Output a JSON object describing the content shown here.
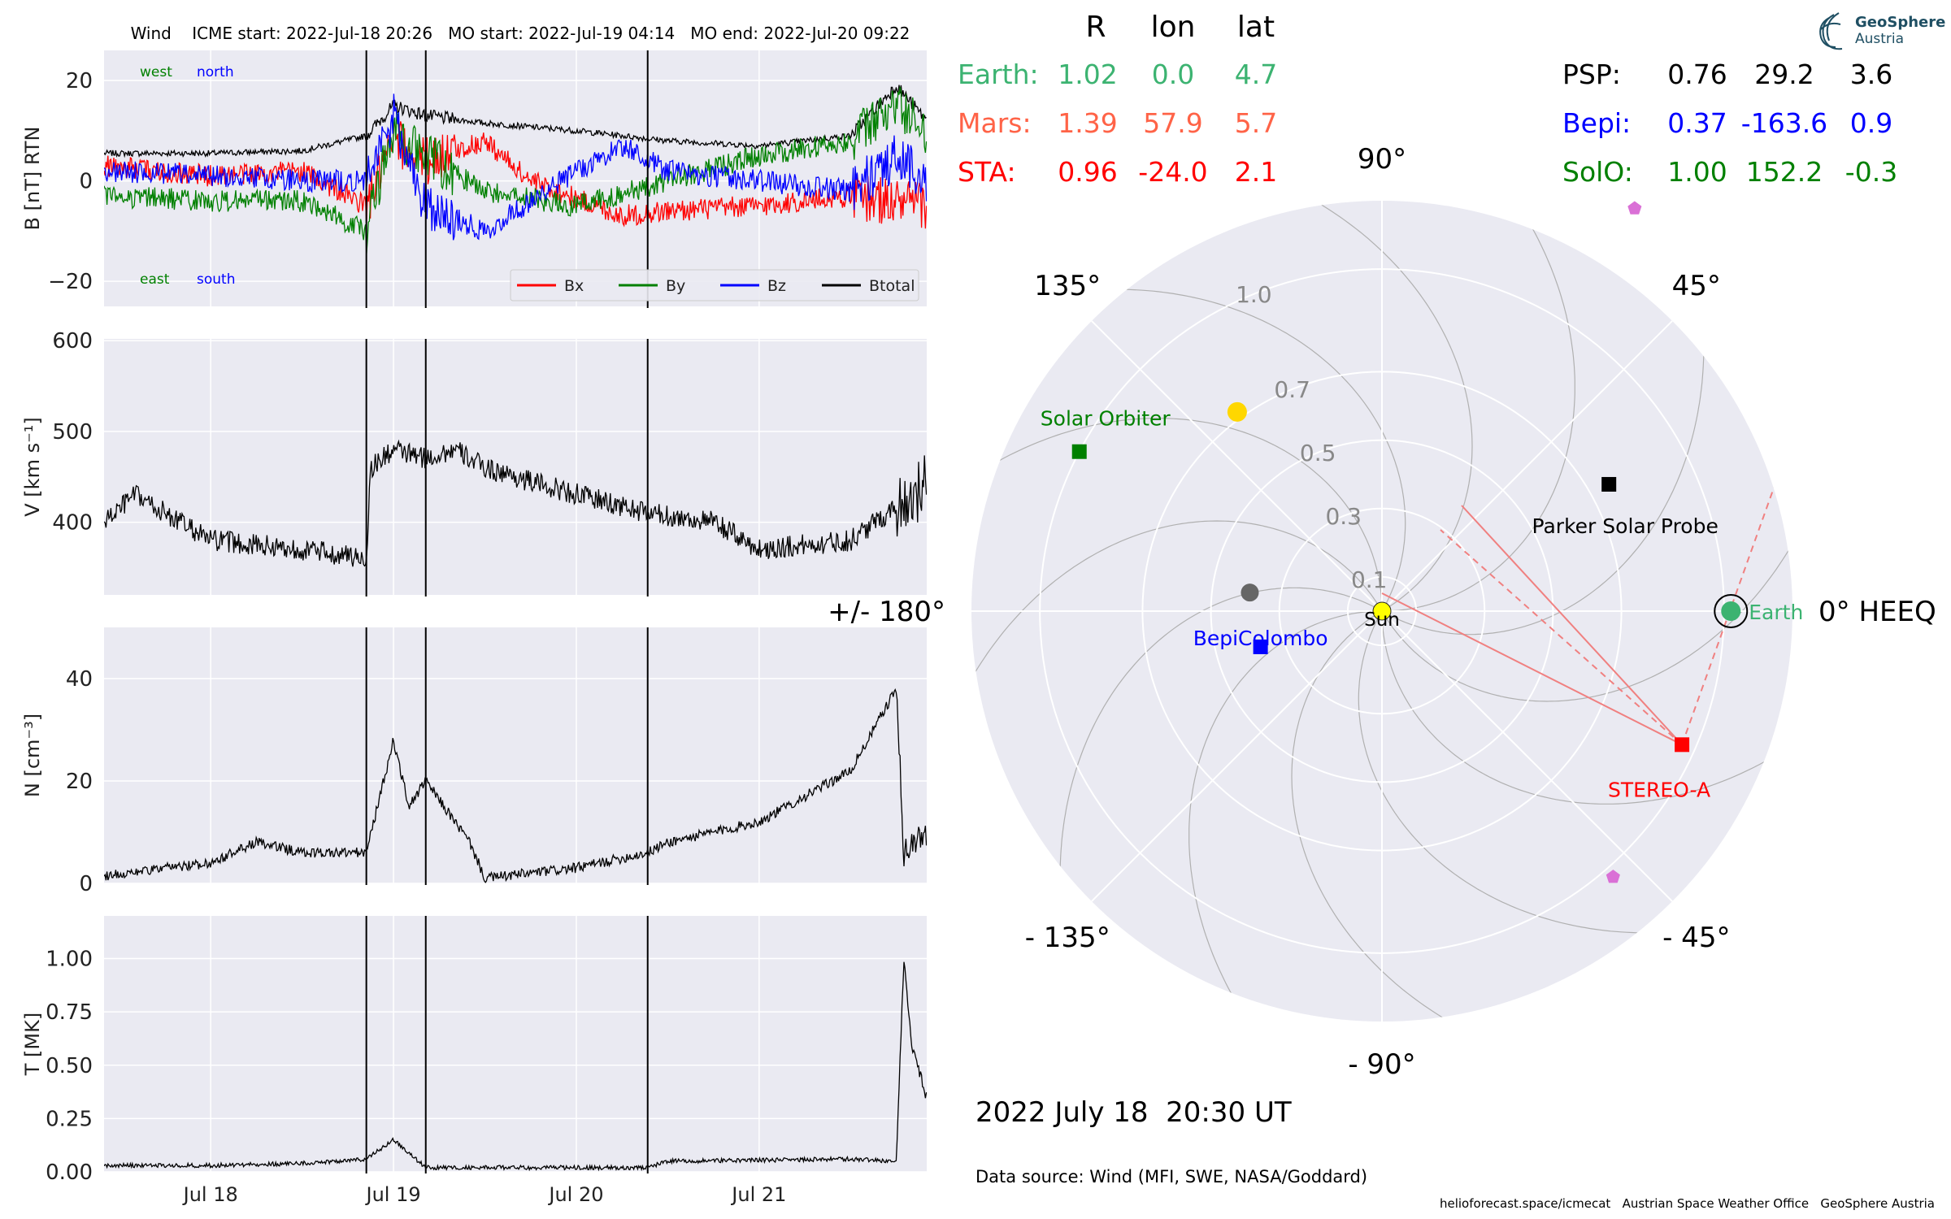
{
  "timeseries": {
    "title": "Wind    ICME start: 2022-Jul-18 20:26   MO start: 2022-Jul-19 04:14   MO end: 2022-Jul-20 09:22",
    "x_range": [
      "2022-07-17 10:00",
      "2022-07-21 22:00"
    ],
    "x_ticks": [
      {
        "label": "Jul 18",
        "date": "2022-07-18 00:00"
      },
      {
        "label": "Jul 19",
        "date": "2022-07-19 00:00"
      },
      {
        "label": "Jul 20",
        "date": "2022-07-20 00:00"
      },
      {
        "label": "Jul 21",
        "date": "2022-07-21 00:00"
      }
    ],
    "event_lines": [
      "2022-07-18 20:26",
      "2022-07-19 04:14",
      "2022-07-20 09:22"
    ],
    "colors": {
      "bg": "#eaeaf2",
      "grid": "#ffffff",
      "Bx": "#ff0000",
      "By": "#008000",
      "Bz": "#0000ff",
      "Btotal": "#000000"
    },
    "panels": [
      {
        "key": "B",
        "ylabel": "B [nT] RTN",
        "ylim": [
          -25,
          26
        ],
        "ticks": [
          {
            "v": 20,
            "label": "20"
          },
          {
            "v": 0,
            "label": "0"
          },
          {
            "v": -20,
            "label": "−20"
          }
        ],
        "annotations": [
          {
            "text": "west",
            "color": "#008000",
            "position": "top-left"
          },
          {
            "text": "north",
            "color": "#0000ff",
            "position": "top-left"
          },
          {
            "text": "east",
            "color": "#008000",
            "position": "bottom-left"
          },
          {
            "text": "south",
            "color": "#0000ff",
            "position": "bottom-left"
          }
        ],
        "legend": [
          "Bx",
          "By",
          "Bz",
          "Btotal"
        ]
      },
      {
        "key": "V",
        "ylabel": "V [km s⁻¹]",
        "ylim": [
          320,
          602
        ],
        "ticks": [
          {
            "v": 600,
            "label": "600"
          },
          {
            "v": 500,
            "label": "500"
          },
          {
            "v": 400,
            "label": "400"
          }
        ]
      },
      {
        "key": "N",
        "ylabel": "N [cm⁻³]",
        "ylim": [
          0,
          50
        ],
        "ticks": [
          {
            "v": 40,
            "label": "40"
          },
          {
            "v": 20,
            "label": "20"
          },
          {
            "v": 0,
            "label": "0"
          }
        ]
      },
      {
        "key": "T",
        "ylabel": "T [MK]",
        "ylim": [
          0,
          1.2
        ],
        "ticks": [
          {
            "v": 1.0,
            "label": "1.00"
          },
          {
            "v": 0.75,
            "label": "0.75"
          },
          {
            "v": 0.5,
            "label": "0.50"
          },
          {
            "v": 0.25,
            "label": "0.25"
          },
          {
            "v": 0.0,
            "label": "0.00"
          }
        ]
      }
    ]
  },
  "chart_data": [
    {
      "type": "line",
      "title": "Wind    ICME start: 2022-Jul-18 20:26   MO start: 2022-Jul-19 04:14   MO end: 2022-Jul-20 09:22",
      "ylabel": "B [nT] RTN",
      "series": [
        {
          "name": "Btotal",
          "points": [
            [
              "2022-07-17 10:00",
              5.5
            ],
            [
              "2022-07-18 00:00",
              5.5
            ],
            [
              "2022-07-18 12:00",
              6
            ],
            [
              "2022-07-18 20:26",
              9
            ],
            [
              "2022-07-19 00:00",
              15
            ],
            [
              "2022-07-19 04:14",
              13
            ],
            [
              "2022-07-19 12:00",
              11.5
            ],
            [
              "2022-07-20 00:00",
              10
            ],
            [
              "2022-07-20 12:00",
              8
            ],
            [
              "2022-07-21 00:00",
              7
            ],
            [
              "2022-07-21 12:00",
              9
            ],
            [
              "2022-07-21 18:00",
              19
            ],
            [
              "2022-07-21 22:00",
              12
            ]
          ]
        },
        {
          "name": "Bx",
          "points": [
            [
              "2022-07-17 10:00",
              3
            ],
            [
              "2022-07-18 00:00",
              1
            ],
            [
              "2022-07-18 12:00",
              2
            ],
            [
              "2022-07-18 20:26",
              -5
            ],
            [
              "2022-07-19 00:00",
              8
            ],
            [
              "2022-07-19 04:14",
              4
            ],
            [
              "2022-07-19 12:00",
              8
            ],
            [
              "2022-07-19 18:00",
              0
            ],
            [
              "2022-07-20 06:00",
              -7
            ],
            [
              "2022-07-20 12:00",
              -6
            ],
            [
              "2022-07-21 00:00",
              -5
            ],
            [
              "2022-07-21 12:00",
              -3
            ],
            [
              "2022-07-21 22:00",
              -5
            ]
          ]
        },
        {
          "name": "By",
          "points": [
            [
              "2022-07-17 10:00",
              -3
            ],
            [
              "2022-07-18 00:00",
              -4
            ],
            [
              "2022-07-18 12:00",
              -4
            ],
            [
              "2022-07-18 20:26",
              -10
            ],
            [
              "2022-07-19 00:00",
              10
            ],
            [
              "2022-07-19 04:14",
              5
            ],
            [
              "2022-07-19 12:00",
              -2
            ],
            [
              "2022-07-20 00:00",
              -5
            ],
            [
              "2022-07-20 12:00",
              0
            ],
            [
              "2022-07-21 00:00",
              5
            ],
            [
              "2022-07-21 12:00",
              8
            ],
            [
              "2022-07-21 18:00",
              15
            ],
            [
              "2022-07-21 22:00",
              10
            ]
          ]
        },
        {
          "name": "Bz",
          "points": [
            [
              "2022-07-17 10:00",
              2
            ],
            [
              "2022-07-18 00:00",
              1
            ],
            [
              "2022-07-18 12:00",
              0
            ],
            [
              "2022-07-18 20:26",
              0
            ],
            [
              "2022-07-19 00:00",
              13
            ],
            [
              "2022-07-19 04:14",
              -5
            ],
            [
              "2022-07-19 12:00",
              -10
            ],
            [
              "2022-07-20 00:00",
              2
            ],
            [
              "2022-07-20 06:00",
              7
            ],
            [
              "2022-07-20 12:00",
              2
            ],
            [
              "2022-07-21 00:00",
              0
            ],
            [
              "2022-07-21 12:00",
              -2
            ],
            [
              "2022-07-21 18:00",
              5
            ],
            [
              "2022-07-21 22:00",
              0
            ]
          ]
        }
      ]
    },
    {
      "type": "line",
      "ylabel": "V [km s⁻¹]",
      "series": [
        {
          "name": "V",
          "points": [
            [
              "2022-07-17 10:00",
              400
            ],
            [
              "2022-07-17 14:00",
              430
            ],
            [
              "2022-07-18 00:00",
              380
            ],
            [
              "2022-07-18 12:00",
              370
            ],
            [
              "2022-07-18 20:26",
              360
            ],
            [
              "2022-07-18 21:00",
              460
            ],
            [
              "2022-07-19 00:00",
              480
            ],
            [
              "2022-07-19 04:14",
              470
            ],
            [
              "2022-07-19 08:00",
              480
            ],
            [
              "2022-07-19 12:00",
              460
            ],
            [
              "2022-07-19 20:00",
              440
            ],
            [
              "2022-07-20 09:22",
              410
            ],
            [
              "2022-07-20 18:00",
              400
            ],
            [
              "2022-07-21 00:00",
              370
            ],
            [
              "2022-07-21 12:00",
              380
            ],
            [
              "2022-07-21 20:00",
              430
            ],
            [
              "2022-07-21 22:00",
              440
            ]
          ]
        }
      ]
    },
    {
      "type": "line",
      "ylabel": "N [cm⁻³]",
      "series": [
        {
          "name": "N",
          "points": [
            [
              "2022-07-17 10:00",
              1.5
            ],
            [
              "2022-07-18 00:00",
              4
            ],
            [
              "2022-07-18 06:00",
              8
            ],
            [
              "2022-07-18 12:00",
              6
            ],
            [
              "2022-07-18 20:26",
              6
            ],
            [
              "2022-07-19 00:00",
              28
            ],
            [
              "2022-07-19 02:00",
              15
            ],
            [
              "2022-07-19 04:14",
              20
            ],
            [
              "2022-07-19 10:00",
              8
            ],
            [
              "2022-07-19 12:00",
              1
            ],
            [
              "2022-07-20 00:00",
              3
            ],
            [
              "2022-07-20 09:22",
              6
            ],
            [
              "2022-07-20 12:00",
              8
            ],
            [
              "2022-07-21 00:00",
              12
            ],
            [
              "2022-07-21 12:00",
              22
            ],
            [
              "2022-07-21 18:00",
              38
            ],
            [
              "2022-07-21 19:00",
              6
            ],
            [
              "2022-07-21 22:00",
              10
            ]
          ]
        }
      ]
    },
    {
      "type": "line",
      "ylabel": "T [MK]",
      "series": [
        {
          "name": "T",
          "points": [
            [
              "2022-07-17 10:00",
              0.03
            ],
            [
              "2022-07-18 00:00",
              0.03
            ],
            [
              "2022-07-18 12:00",
              0.04
            ],
            [
              "2022-07-18 20:26",
              0.06
            ],
            [
              "2022-07-19 00:00",
              0.15
            ],
            [
              "2022-07-19 04:14",
              0.02
            ],
            [
              "2022-07-20 09:22",
              0.02
            ],
            [
              "2022-07-20 12:00",
              0.05
            ],
            [
              "2022-07-21 12:00",
              0.06
            ],
            [
              "2022-07-21 18:00",
              0.05
            ],
            [
              "2022-07-21 19:00",
              1.0
            ],
            [
              "2022-07-21 20:00",
              0.6
            ],
            [
              "2022-07-21 22:00",
              0.35
            ]
          ]
        }
      ]
    },
    {
      "type": "scatter",
      "coordinate_system": "polar",
      "radial_ticks": [
        0.1,
        0.3,
        0.5,
        0.7,
        1.0
      ],
      "theta_labels": [
        {
          "deg": 90,
          "label": "90°"
        },
        {
          "deg": 45,
          "label": "45°"
        },
        {
          "deg": 0,
          "label": "0° HEEQ"
        },
        {
          "deg": -45,
          "label": "- 45°"
        },
        {
          "deg": -90,
          "label": "- 90°"
        },
        {
          "deg": -135,
          "label": "- 135°"
        },
        {
          "deg": 180,
          "label": "+/- 180°"
        },
        {
          "deg": 135,
          "label": "135°"
        }
      ],
      "center_label": "Sun",
      "bodies": [
        {
          "name": "Earth",
          "label": "Earth",
          "r": 1.02,
          "lon": 0.0,
          "marker": "circle",
          "color": "#3cb371"
        },
        {
          "name": "Mars",
          "label": "",
          "r": 1.39,
          "lon": 57.9,
          "marker": "pentagon",
          "color": "#da70d6"
        },
        {
          "name": "STEREO-A",
          "label": "STEREO-A",
          "r": 0.96,
          "lon": -24.0,
          "marker": "square",
          "color": "#ff0000"
        },
        {
          "name": "Parker Solar Probe",
          "label": "Parker Solar Probe",
          "r": 0.76,
          "lon": 29.2,
          "marker": "square",
          "color": "#000000"
        },
        {
          "name": "BepiColombo",
          "label": "BepiColombo",
          "r": 0.37,
          "lon": -163.6,
          "marker": "square",
          "color": "#0000ff"
        },
        {
          "name": "Solar Orbiter",
          "label": "Solar Orbiter",
          "r": 1.0,
          "lon": 152.2,
          "marker": "square",
          "color": "#008000"
        }
      ]
    }
  ],
  "positions_table": {
    "headers": [
      "R",
      "lon",
      "lat"
    ],
    "left": [
      {
        "name": "Earth:",
        "R": "1.02",
        "lon": "0.0",
        "lat": "4.7",
        "color": "#3cb371"
      },
      {
        "name": "Mars:",
        "R": "1.39",
        "lon": "57.9",
        "lat": "5.7",
        "color": "#ff6347"
      },
      {
        "name": "STA:",
        "R": "0.96",
        "lon": "-24.0",
        "lat": "2.1",
        "color": "#ff0000"
      }
    ],
    "right": [
      {
        "name": "PSP:",
        "R": "0.76",
        "lon": "29.2",
        "lat": "3.6",
        "color": "#000000"
      },
      {
        "name": "Bepi:",
        "R": "0.37",
        "lon": "-163.6",
        "lat": "0.9",
        "color": "#0000ff"
      },
      {
        "name": "SolO:",
        "R": "1.00",
        "lon": "152.2",
        "lat": "-0.3",
        "color": "#008000"
      }
    ]
  },
  "timestamp": "2022 July 18  20:30 UT",
  "data_source": "Data source: Wind (MFI, SWE, NASA/Goddard)",
  "footer": "helioforecast.space/icmecat   Austrian Space Weather Office   GeoSphere Austria",
  "logo": {
    "line1": "GeoSphere",
    "line2": "Austria"
  }
}
